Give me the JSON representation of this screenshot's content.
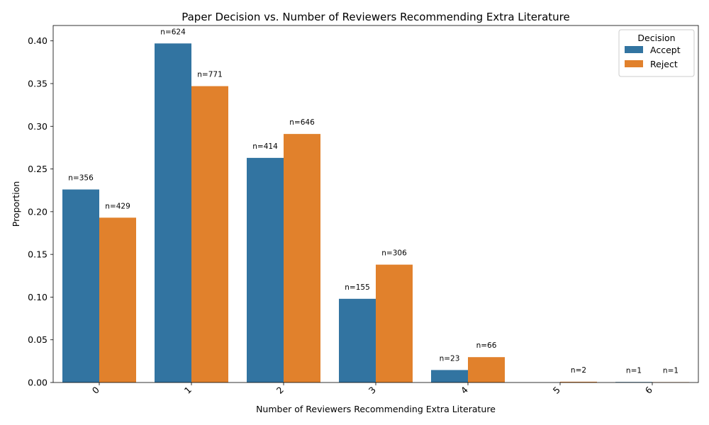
{
  "chart_data": {
    "type": "bar",
    "title": "Paper Decision vs. Number of Reviewers Recommending Extra Literature",
    "xlabel": "Number of Reviewers Recommending Extra Literature",
    "ylabel": "Proportion",
    "categories": [
      "0",
      "1",
      "2",
      "3",
      "4",
      "5",
      "6"
    ],
    "ylim": [
      0,
      0.418
    ],
    "yticks": [
      "0.00",
      "0.05",
      "0.10",
      "0.15",
      "0.20",
      "0.25",
      "0.30",
      "0.35",
      "0.40"
    ],
    "legend": {
      "title": "Decision",
      "placement": "top-right"
    },
    "grid": false,
    "series": [
      {
        "name": "Accept",
        "color": "#3274a1",
        "values": [
          0.226,
          0.397,
          0.263,
          0.098,
          0.0146,
          0,
          0.0006
        ],
        "labels": [
          "n=356",
          "n=624",
          "n=414",
          "n=155",
          "n=23",
          "",
          "n=1"
        ]
      },
      {
        "name": "Reject",
        "color": "#e1812c",
        "values": [
          0.193,
          0.347,
          0.291,
          0.138,
          0.0297,
          0.0009,
          0.00045
        ],
        "labels": [
          "n=429",
          "n=771",
          "n=646",
          "n=306",
          "n=66",
          "n=2",
          "n=1"
        ]
      }
    ]
  }
}
